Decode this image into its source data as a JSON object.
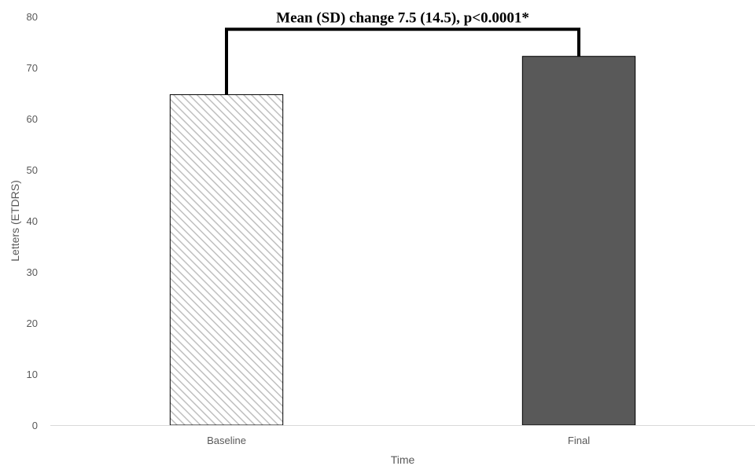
{
  "chart_data": {
    "type": "bar",
    "categories": [
      "Baseline",
      "Final"
    ],
    "values": [
      64.7,
      72.2
    ],
    "xlabel": "Time",
    "ylabel": "Letters (ETDRS)",
    "ylim": [
      0,
      80
    ],
    "yticks": [
      0,
      10,
      20,
      30,
      40,
      50,
      60,
      70,
      80
    ],
    "grid": false,
    "legend": "none",
    "bar_styles": [
      "hatched",
      "solid"
    ],
    "colors": {
      "baseline_hatch": "#bfbfbf",
      "final_fill": "#595959",
      "bar_edge": "#000000",
      "axis": "#d9d9d9",
      "text": "#595959"
    },
    "annotation": {
      "text": "Mean (SD) change 7.5 (14.5), p<0.0001*",
      "bracket_top": 77.5,
      "from": "Baseline",
      "to": "Final"
    }
  }
}
